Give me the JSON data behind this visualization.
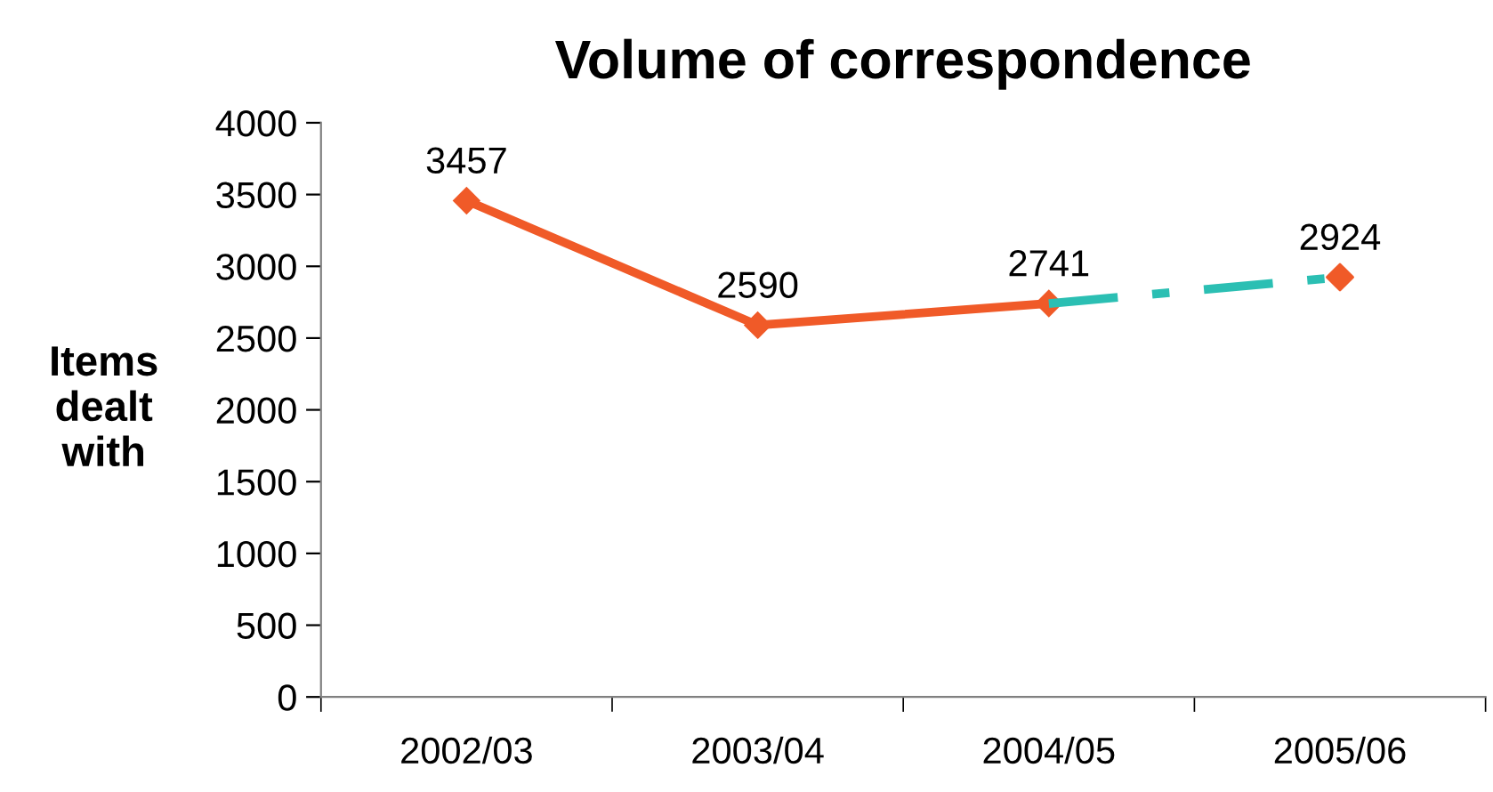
{
  "chart_data": {
    "type": "line",
    "title": "Volume of correspondence",
    "ylabel": "Items\ndealt\nwith",
    "categories": [
      "2002/03",
      "2003/04",
      "2004/05",
      "2005/06"
    ],
    "series": [
      {
        "color": "#f05a28",
        "values": [
          3457,
          2590,
          2741,
          null
        ],
        "marker": "diamond",
        "line_style": "solid",
        "value_labels": [
          "3457",
          "2590",
          "2741",
          null
        ]
      },
      {
        "color": "#2bbfb3",
        "values": [
          null,
          null,
          2741,
          2924
        ],
        "marker": "none",
        "line_style": "dashed"
      },
      {
        "type": "scatter",
        "color": "#f05a28",
        "values": [
          null,
          null,
          null,
          2924
        ],
        "marker": "diamond",
        "value_labels": [
          null,
          null,
          null,
          "2924"
        ]
      }
    ],
    "ylim": [
      0,
      4000
    ],
    "yticks": [
      0,
      500,
      1000,
      1500,
      2000,
      2500,
      3000,
      3500,
      4000
    ],
    "grid": false,
    "legend": false
  }
}
